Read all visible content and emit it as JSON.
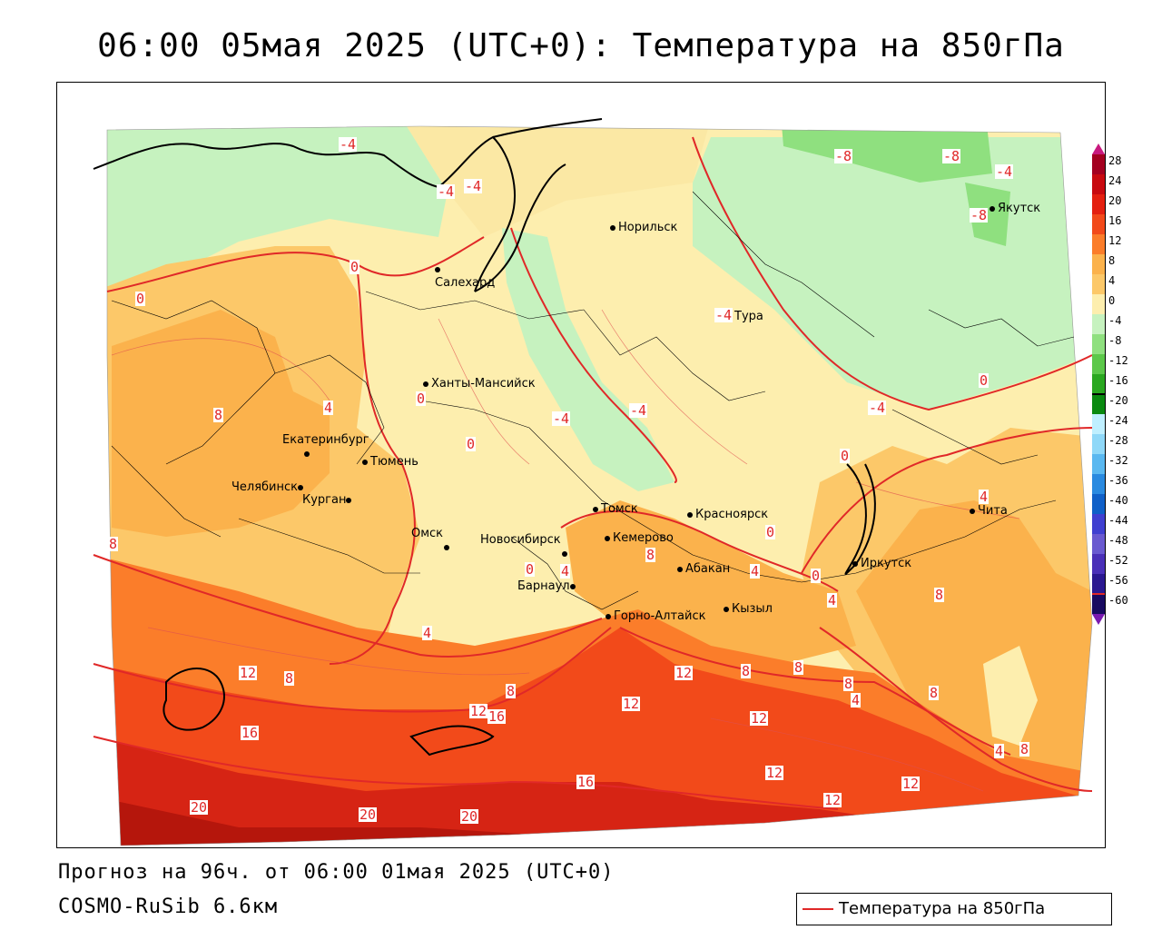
{
  "header": {
    "title": "06:00 05мая 2025 (UTC+0): Температура на 850гПа"
  },
  "footer": {
    "forecast": "Прогноз на 96ч. от 06:00 01мая 2025 (UTC+0)",
    "model": "COSMO-RuSib 6.6км"
  },
  "legend": {
    "label": "Температура на 850гПа",
    "line_color": "#e02828"
  },
  "colorbar": {
    "ticks": [
      "28",
      "24",
      "20",
      "16",
      "12",
      "8",
      "4",
      "0",
      "-4",
      "-8",
      "-12",
      "-16",
      "-20",
      "-24",
      "-28",
      "-32",
      "-36",
      "-40",
      "-44",
      "-48",
      "-52",
      "-56",
      "-60"
    ]
  },
  "cities": [
    {
      "name": "Норильск"
    },
    {
      "name": "Якутск"
    },
    {
      "name": "Салехард"
    },
    {
      "name": "Тура"
    },
    {
      "name": "Ханты-Мансийск"
    },
    {
      "name": "Екатеринбург"
    },
    {
      "name": "Тюмень"
    },
    {
      "name": "Челябинск"
    },
    {
      "name": "Курган"
    },
    {
      "name": "Омск"
    },
    {
      "name": "Новосибирск"
    },
    {
      "name": "Томск"
    },
    {
      "name": "Кемерово"
    },
    {
      "name": "Красноярск"
    },
    {
      "name": "Барнаул"
    },
    {
      "name": "Абакан"
    },
    {
      "name": "Кызыл"
    },
    {
      "name": "Горно-Алтайск"
    },
    {
      "name": "Иркутск"
    },
    {
      "name": "Чита"
    }
  ],
  "contour_labels": [
    "-4",
    "-4",
    "-4",
    "0",
    "0",
    "-8",
    "-8",
    "-4",
    "-8",
    "-4",
    "-4",
    "-4",
    "-4",
    "0",
    "0",
    "4",
    "8",
    "0",
    "0",
    "4",
    "0",
    "8",
    "0",
    "4",
    "8",
    "4",
    "0",
    "4",
    "4",
    "8",
    "12",
    "8",
    "12",
    "16",
    "12",
    "12",
    "8",
    "8",
    "8",
    "8",
    "4",
    "12",
    "16",
    "20",
    "20",
    "20",
    "16",
    "12",
    "12",
    "12",
    "8",
    "4",
    "8"
  ]
}
